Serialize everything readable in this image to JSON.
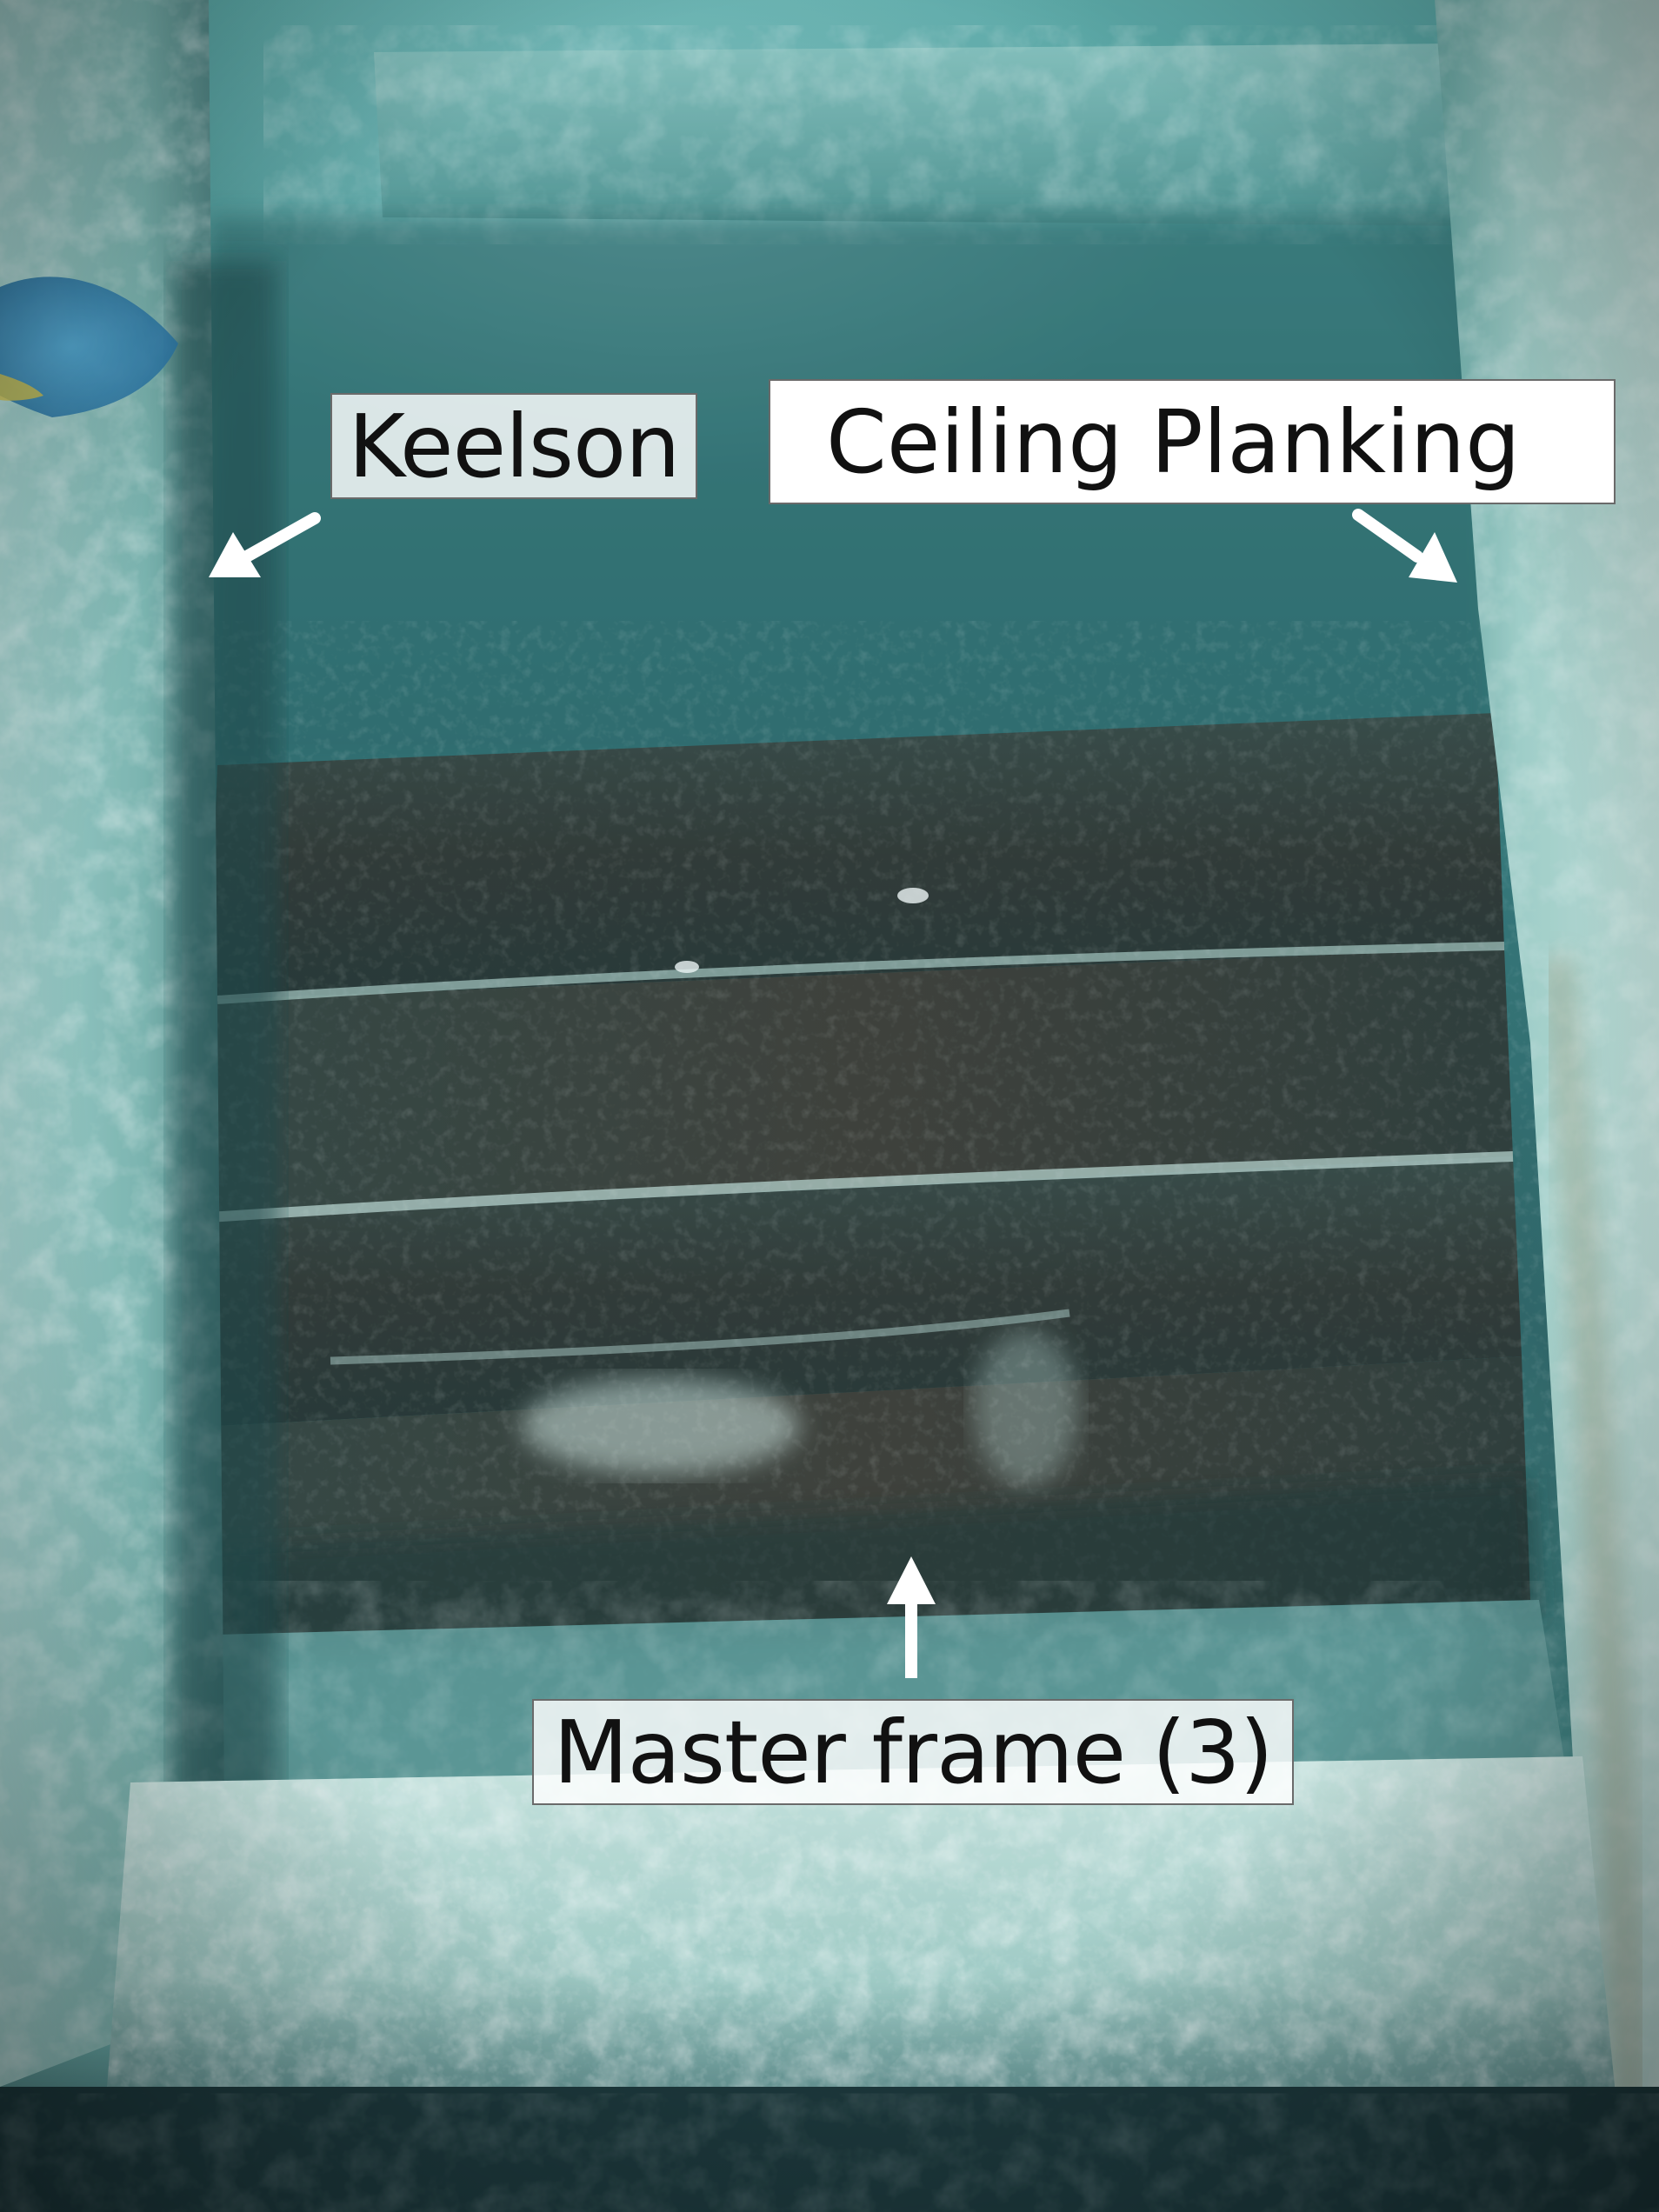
{
  "labels": {
    "keelson": "Keelson",
    "ceiling_planking": "Ceiling Planking",
    "master_frame": "Master frame (3)"
  },
  "colors": {
    "water": "#3f8b8b",
    "timber_dark": "#2a2f2c",
    "sand": "#cfe3df",
    "arrow": "#ffffff"
  }
}
